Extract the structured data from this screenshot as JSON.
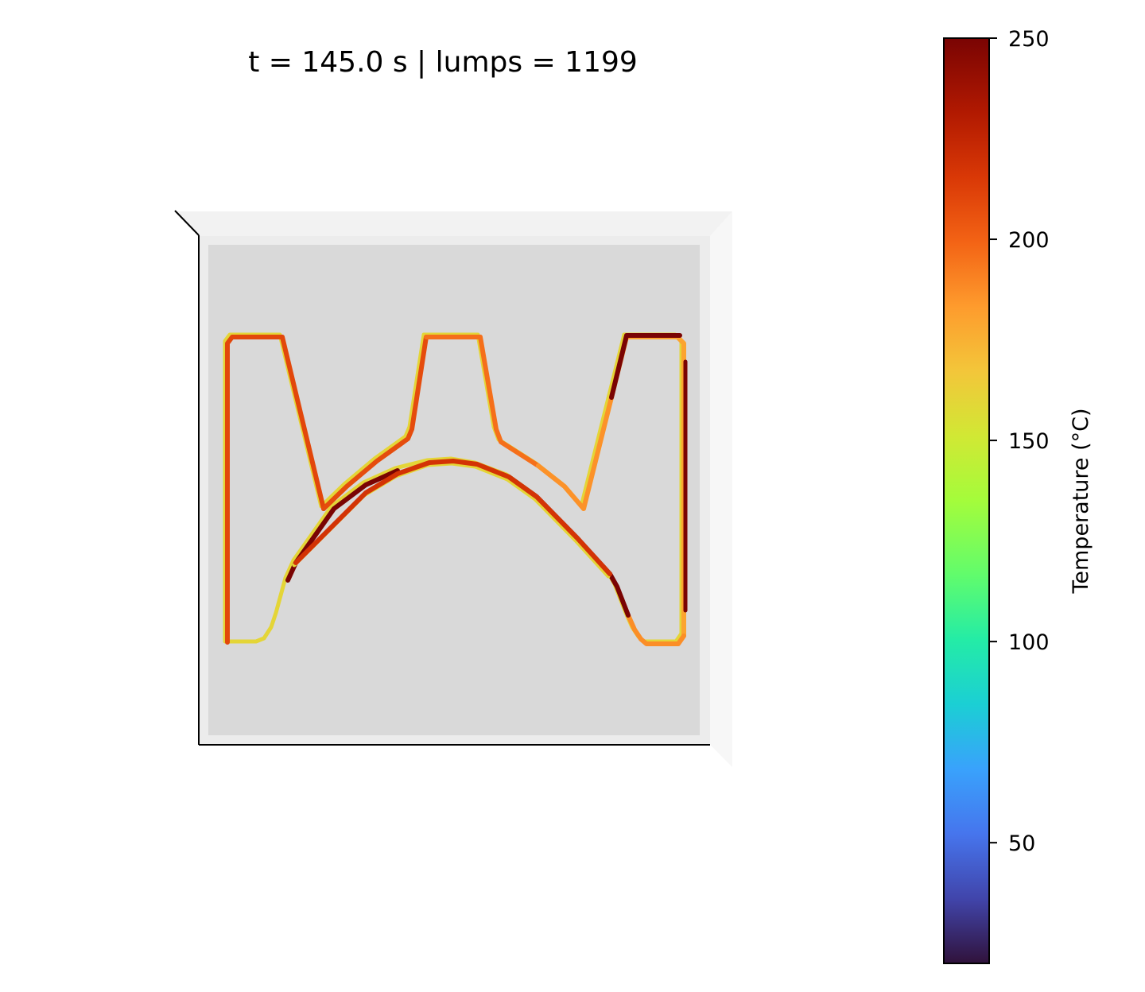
{
  "title": "t = 145.0 s  |  lumps = 1199",
  "chart_data": {
    "type": "scatter",
    "view": "3D top-down",
    "title": "t = 145.0 s  |  lumps = 1199",
    "time_s": 145.0,
    "lumps": 1199,
    "colormap": "turbo",
    "colorbar": {
      "label": "Temperature (°C)",
      "range": [
        20,
        250
      ],
      "ticks": [
        50,
        100,
        150,
        200,
        250
      ],
      "tick_labels": [
        "50",
        "100",
        "150",
        "200",
        "250"
      ]
    },
    "toolpath": {
      "temperature_scale": [
        20,
        250
      ],
      "outer_contour": {
        "under_layer_temperature": 160,
        "top_layer_segments": [
          {
            "from": 0,
            "to": 4,
            "temperature": 210
          },
          {
            "from": 4,
            "to": 9,
            "temperature": 208
          },
          {
            "from": 9,
            "to": 13,
            "temperature": 196
          },
          {
            "from": 13,
            "to": 16,
            "temperature": 186
          },
          {
            "from": 16,
            "to": 19,
            "temperature": 180
          },
          {
            "from": 19,
            "to": 24,
            "temperature": 187
          },
          {
            "from": 24,
            "to": 26,
            "temperature": 250
          }
        ],
        "hot_segments": [
          {
            "from": 26,
            "to": 30,
            "temperature": 250
          },
          {
            "from": 33,
            "to": 37,
            "temperature": 250
          }
        ]
      },
      "inner_arch": {
        "under_layer_temperature": 160,
        "temperature": 218
      }
    },
    "xlabel": "",
    "ylabel": "",
    "grid": false,
    "legend": "none"
  }
}
